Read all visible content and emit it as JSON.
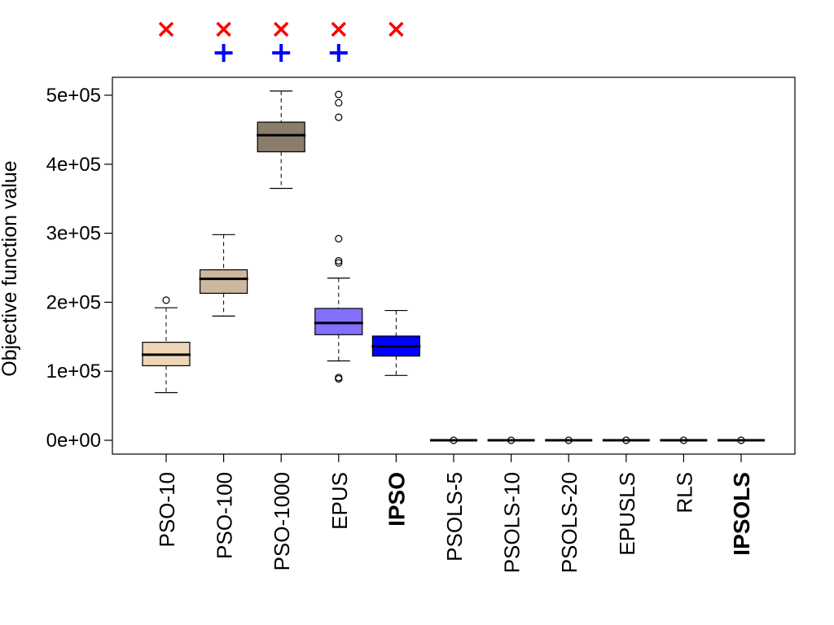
{
  "chart_data": {
    "type": "boxplot",
    "title": "",
    "xlabel": "",
    "ylabel": "Objective function value",
    "ylim": [
      -20000,
      530000
    ],
    "yticks": [
      0,
      100000,
      200000,
      300000,
      400000,
      500000
    ],
    "ytick_labels": [
      "0e+00",
      "1e+05",
      "2e+05",
      "3e+05",
      "4e+05",
      "5e+05"
    ],
    "grid": false,
    "categories": [
      "PSO-10",
      "PSO-100",
      "PSO-1000",
      "EPUS",
      "IPSO",
      "PSOLS-5",
      "PSOLS-10",
      "PSOLS-20",
      "EPUSLS",
      "RLS",
      "IPSOLS"
    ],
    "boxes": [
      {
        "name": "PSO-10",
        "color": "#EED5B7",
        "whisker_low": 69000,
        "q1": 108000,
        "median": 124000,
        "q3": 142000,
        "whisker_high": 192000,
        "outliers": [
          203000
        ]
      },
      {
        "name": "PSO-100",
        "color": "#CDB79E",
        "whisker_low": 180000,
        "q1": 213000,
        "median": 234000,
        "q3": 247000,
        "whisker_high": 298000,
        "outliers": []
      },
      {
        "name": "PSO-1000",
        "color": "#8B7D6B",
        "whisker_low": 365000,
        "q1": 418000,
        "median": 442000,
        "q3": 461000,
        "whisker_high": 506000,
        "outliers": []
      },
      {
        "name": "EPUS",
        "color": "#8470FF",
        "whisker_low": 115000,
        "q1": 153000,
        "median": 170000,
        "q3": 191000,
        "whisker_high": 235000,
        "outliers": [
          89000,
          91000,
          257000,
          260000,
          292000,
          468000,
          489000,
          501000
        ]
      },
      {
        "name": "IPSO",
        "color": "#0000FF",
        "whisker_low": 94000,
        "q1": 122000,
        "median": 136000,
        "q3": 151000,
        "whisker_high": 188000,
        "outliers": []
      },
      {
        "name": "PSOLS-5",
        "color": "#FFFFFF",
        "whisker_low": 0,
        "q1": 0,
        "median": 0,
        "q3": 0,
        "whisker_high": 0,
        "outliers": [
          0
        ]
      },
      {
        "name": "PSOLS-10",
        "color": "#FFFFFF",
        "whisker_low": 0,
        "q1": 0,
        "median": 0,
        "q3": 0,
        "whisker_high": 0,
        "outliers": [
          0
        ]
      },
      {
        "name": "PSOLS-20",
        "color": "#FFFFFF",
        "whisker_low": 0,
        "q1": 0,
        "median": 0,
        "q3": 0,
        "whisker_high": 0,
        "outliers": [
          0
        ]
      },
      {
        "name": "EPUSLS",
        "color": "#FFFFFF",
        "whisker_low": 0,
        "q1": 0,
        "median": 0,
        "q3": 0,
        "whisker_high": 0,
        "outliers": [
          0
        ]
      },
      {
        "name": "RLS",
        "color": "#FFFFFF",
        "whisker_low": 0,
        "q1": 0,
        "median": 0,
        "q3": 0,
        "whisker_high": 0,
        "outliers": [
          0
        ]
      },
      {
        "name": "IPSOLS",
        "color": "#FFFFFF",
        "whisker_low": 0,
        "q1": 0,
        "median": 0,
        "q3": 0,
        "whisker_high": 0,
        "outliers": [
          0
        ]
      }
    ],
    "bold_labels": [
      "IPSO",
      "IPSOLS"
    ],
    "annotations": {
      "cross_markers": {
        "symbol": "×",
        "color": "#FF0000",
        "categories": [
          "PSO-10",
          "PSO-100",
          "PSO-1000",
          "EPUS",
          "IPSO"
        ]
      },
      "plus_markers": {
        "symbol": "+",
        "color": "#0000FF",
        "categories": [
          "PSO-100",
          "PSO-1000",
          "EPUS"
        ]
      }
    }
  }
}
